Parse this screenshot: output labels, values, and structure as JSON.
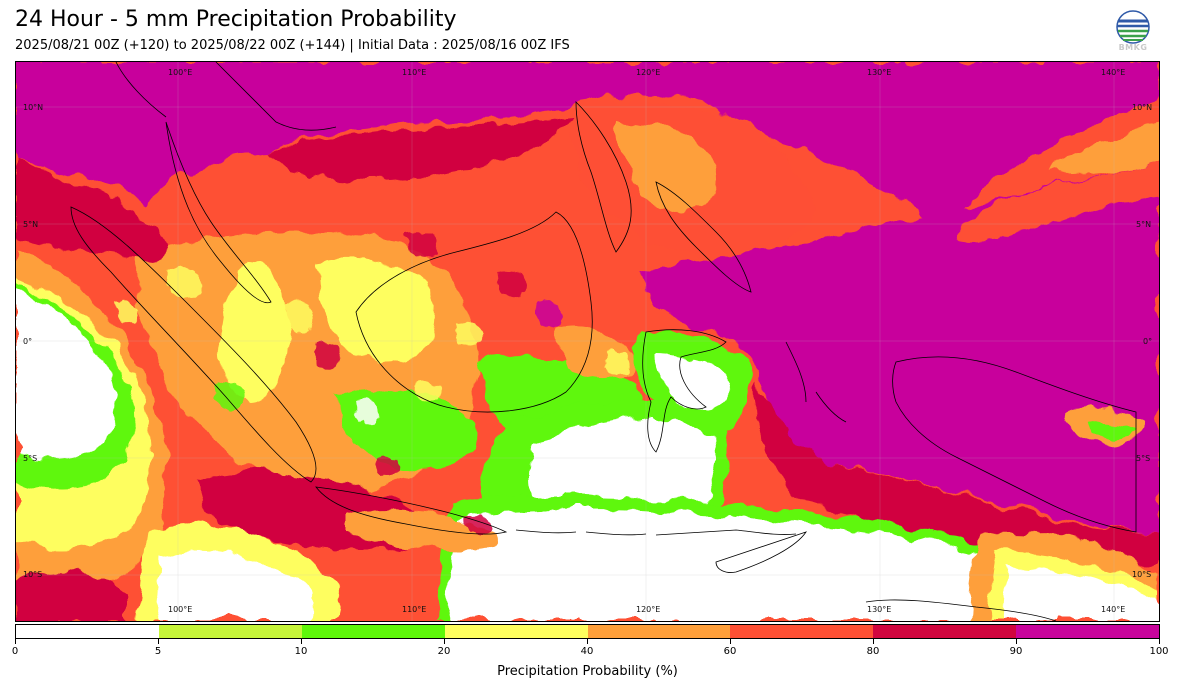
{
  "header": {
    "title": "24 Hour - 5 mm Precipitation Probability",
    "subtitle": "2025/08/21 00Z (+120) to 2025/08/22 00Z (+144) | Initial Data : 2025/08/16 00Z IFS"
  },
  "logo": {
    "text": "BMKG",
    "icon": "bmkg-globe-logo"
  },
  "map": {
    "lon_labels_top": [
      "100°E",
      "110°E",
      "120°E",
      "130°E",
      "140°E"
    ],
    "lon_labels_bottom": [
      "100°E",
      "110°E",
      "120°E",
      "130°E",
      "140°E"
    ],
    "lat_labels_left": [
      "10°N",
      "5°N",
      "0°",
      "5°S",
      "10°S"
    ],
    "lat_labels_right": [
      "10°N",
      "5°N",
      "0°",
      "5°S",
      "10°S"
    ]
  },
  "colorbar": {
    "label": "Precipitation Probability (%)",
    "ticks": [
      "0",
      "5",
      "10",
      "20",
      "40",
      "60",
      "80",
      "90",
      "100"
    ],
    "colors": [
      "#ffffff",
      "#c6f53a",
      "#5ef70a",
      "#fefe5e",
      "#fe9f3a",
      "#fe5034",
      "#d1063f",
      "#c8059c"
    ]
  }
}
